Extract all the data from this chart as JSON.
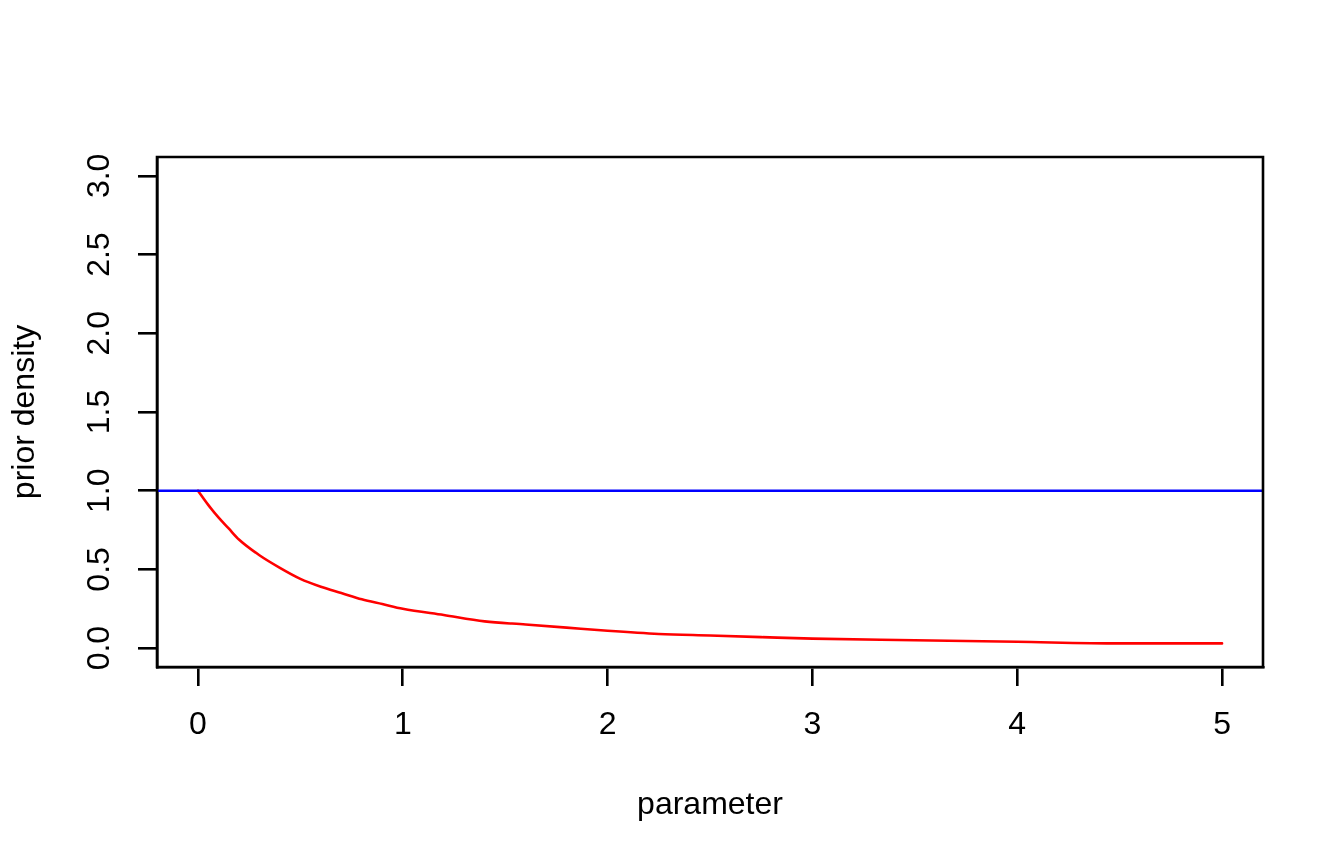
{
  "chart_data": {
    "type": "line",
    "xlabel": "parameter",
    "ylabel": "prior density",
    "x": [
      0,
      0.05,
      0.1,
      0.15,
      0.2,
      0.3,
      0.4,
      0.5,
      0.6,
      0.7,
      0.8,
      0.9,
      1,
      1.2,
      1.4,
      1.6,
      1.8,
      2,
      2.25,
      2.5,
      2.75,
      3,
      3.5,
      4,
      4.5,
      5
    ],
    "values": [
      1.0,
      0.91,
      0.83,
      0.76,
      0.69,
      0.59,
      0.51,
      0.44,
      0.39,
      0.35,
      0.31,
      0.28,
      0.25,
      0.21,
      0.17,
      0.15,
      0.13,
      0.11,
      0.09,
      0.08,
      0.07,
      0.06,
      0.05,
      0.04,
      0.03,
      0.03
    ],
    "color": "#ff0000",
    "xlim": [
      -0.2,
      5.2
    ],
    "ylim": [
      -0.12,
      3.12
    ],
    "xticks": [
      0,
      1,
      2,
      3,
      4,
      5
    ],
    "yticks": [
      {
        "value": 0,
        "label": "0.0"
      },
      0.5,
      {
        "value": 1,
        "label": "1.0"
      },
      1.5,
      {
        "value": 2,
        "label": "2.0"
      },
      2.5,
      {
        "value": 3,
        "label": "3.0"
      }
    ],
    "ref_lines": [
      {
        "axis": "y",
        "value": 1,
        "color": "#0000ff"
      }
    ]
  }
}
